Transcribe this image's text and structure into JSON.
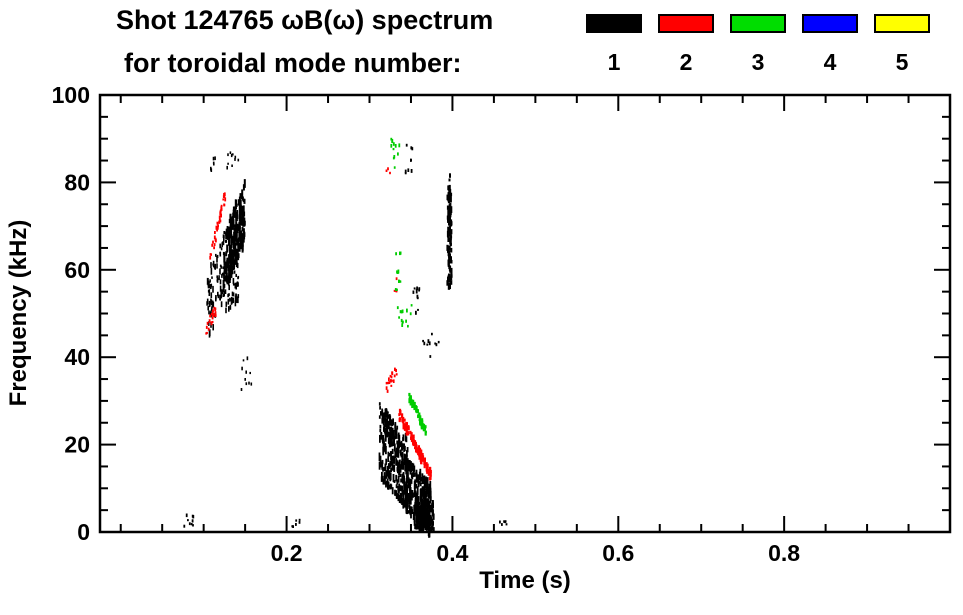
{
  "title": {
    "line1": "Shot 124765 ωB(ω) spectrum",
    "line2": "for toroidal mode number:"
  },
  "legend": {
    "modes": [
      {
        "label": "1",
        "color": "#000000"
      },
      {
        "label": "2",
        "color": "#ff0000"
      },
      {
        "label": "3",
        "color": "#00dd00"
      },
      {
        "label": "4",
        "color": "#0000ff"
      },
      {
        "label": "5",
        "color": "#ffff00"
      }
    ]
  },
  "axes": {
    "xlabel": "Time (s)",
    "ylabel": "Frequency (kHz)",
    "x_tick_labels": [
      "0.2",
      "0.4",
      "0.6",
      "0.8"
    ],
    "y_tick_labels": [
      "0",
      "20",
      "40",
      "60",
      "80",
      "100"
    ]
  },
  "chart_data": {
    "type": "scatter",
    "title": "Shot 124765 ωB(ω) spectrum for toroidal mode number: 1 2 3 4 5",
    "xlabel": "Time (s)",
    "ylabel": "Frequency (kHz)",
    "xlim": [
      -0.025,
      1.0
    ],
    "ylim": [
      0,
      100
    ],
    "xticks": [
      0.2,
      0.4,
      0.6,
      0.8
    ],
    "xminor": 0.05,
    "yticks": [
      0,
      20,
      40,
      60,
      80,
      100
    ],
    "yminor": 5,
    "grid": false,
    "legend_position": "top-right",
    "series": [
      {
        "mode": 1,
        "name": "n=1",
        "color": "#000000",
        "clusters": [
          {
            "kind": "trend",
            "t": [
              0.104,
              0.126
            ],
            "f": [
              52,
              60
            ],
            "spread": 16,
            "count": 90,
            "w": 1.6,
            "h": [
              2,
              7
            ]
          },
          {
            "kind": "trend",
            "t": [
              0.124,
              0.15
            ],
            "f": [
              62,
              73
            ],
            "spread": 14,
            "count": 220,
            "w": 2,
            "h": [
              3,
              10
            ]
          },
          {
            "kind": "trend",
            "t": [
              0.126,
              0.142
            ],
            "f": [
              55,
              58
            ],
            "spread": 10,
            "count": 60,
            "w": 1.6,
            "h": [
              2,
              6
            ]
          },
          {
            "kind": "uniform",
            "t": [
              0.128,
              0.142
            ],
            "f": [
              83,
              87
            ],
            "count": 10,
            "w": 1.6,
            "h": [
              2,
              4
            ]
          },
          {
            "kind": "uniform",
            "t": [
              0.108,
              0.114
            ],
            "f": [
              82,
              86
            ],
            "count": 6,
            "w": 1.6,
            "h": [
              2,
              4
            ]
          },
          {
            "kind": "uniform",
            "t": [
              0.144,
              0.158
            ],
            "f": [
              32,
              40
            ],
            "count": 10,
            "w": 1.6,
            "h": [
              2,
              4
            ]
          },
          {
            "kind": "uniform",
            "t": [
              0.076,
              0.09
            ],
            "f": [
              1,
              4
            ],
            "count": 9,
            "w": 1.8,
            "h": [
              2,
              4
            ]
          },
          {
            "kind": "uniform",
            "t": [
              0.206,
              0.216
            ],
            "f": [
              1,
              3
            ],
            "count": 6,
            "w": 1.8,
            "h": [
              2,
              3
            ]
          },
          {
            "kind": "uniform",
            "t": [
              0.456,
              0.466
            ],
            "f": [
              1,
              3
            ],
            "count": 6,
            "w": 1.8,
            "h": [
              2,
              3
            ]
          },
          {
            "kind": "uniform",
            "t": [
              0.342,
              0.352
            ],
            "f": [
              82,
              89
            ],
            "count": 9,
            "w": 1.8,
            "h": [
              2,
              5
            ]
          },
          {
            "kind": "uniform",
            "t": [
              0.352,
              0.362
            ],
            "f": [
              50,
              56
            ],
            "count": 10,
            "w": 1.8,
            "h": [
              2,
              5
            ]
          },
          {
            "kind": "uniform",
            "t": [
              0.364,
              0.388
            ],
            "f": [
              40,
              46
            ],
            "count": 10,
            "w": 1.8,
            "h": [
              2,
              4
            ]
          },
          {
            "kind": "uniform",
            "t": [
              0.394,
              0.399
            ],
            "f": [
              56,
              79
            ],
            "count": 90,
            "w": 2.2,
            "h": [
              3,
              7
            ]
          },
          {
            "kind": "uniform",
            "t": [
              0.394,
              0.398
            ],
            "f": [
              80,
              82
            ],
            "count": 3,
            "w": 2,
            "h": [
              2,
              4
            ]
          },
          {
            "kind": "trend",
            "t": [
              0.312,
              0.346
            ],
            "f": [
              21,
              13
            ],
            "spread": 17,
            "count": 240,
            "w": 1.8,
            "h": [
              3,
              9
            ]
          },
          {
            "kind": "trend",
            "t": [
              0.34,
              0.374
            ],
            "f": [
              12,
              5
            ],
            "spread": 12,
            "count": 280,
            "w": 1.8,
            "h": [
              3,
              9
            ]
          },
          {
            "kind": "uniform",
            "t": [
              0.354,
              0.378
            ],
            "f": [
              0.5,
              7
            ],
            "count": 160,
            "w": 2,
            "h": [
              3,
              7
            ]
          },
          {
            "kind": "trend",
            "t": [
              0.315,
              0.33
            ],
            "f": [
              27,
              22
            ],
            "spread": 6,
            "count": 40,
            "w": 1.6,
            "h": [
              2,
              6
            ]
          }
        ]
      },
      {
        "mode": 2,
        "name": "n=2",
        "color": "#ff0000",
        "clusters": [
          {
            "kind": "trend",
            "t": [
              0.107,
              0.126
            ],
            "f": [
              62,
              77
            ],
            "spread": 3,
            "count": 40,
            "w": 1.8,
            "h": [
              2,
              4
            ]
          },
          {
            "kind": "trend",
            "t": [
              0.103,
              0.115
            ],
            "f": [
              46,
              51
            ],
            "spread": 3,
            "count": 22,
            "w": 1.8,
            "h": [
              2,
              4
            ]
          },
          {
            "kind": "trend",
            "t": [
              0.32,
              0.333
            ],
            "f": [
              33,
              37
            ],
            "spread": 3,
            "count": 18,
            "w": 1.8,
            "h": [
              2,
              4
            ]
          },
          {
            "kind": "trend",
            "t": [
              0.336,
              0.374
            ],
            "f": [
              27,
              13
            ],
            "spread": 2.5,
            "count": 110,
            "w": 2.2,
            "h": [
              2.5,
              5
            ]
          },
          {
            "kind": "uniform",
            "t": [
              0.33,
              0.334
            ],
            "f": [
              55,
              58
            ],
            "count": 4,
            "w": 1.8,
            "h": [
              2,
              3
            ]
          },
          {
            "kind": "uniform",
            "t": [
              0.32,
              0.326
            ],
            "f": [
              82,
              85
            ],
            "count": 3,
            "w": 1.8,
            "h": [
              2,
              3
            ]
          }
        ]
      },
      {
        "mode": 3,
        "name": "n=3",
        "color": "#00cc00",
        "clusters": [
          {
            "kind": "uniform",
            "t": [
              0.324,
              0.336
            ],
            "f": [
              82,
              90
            ],
            "count": 12,
            "w": 1.8,
            "h": [
              2,
              4
            ]
          },
          {
            "kind": "uniform",
            "t": [
              0.328,
              0.338
            ],
            "f": [
              55,
              64
            ],
            "count": 11,
            "w": 1.8,
            "h": [
              2,
              4
            ]
          },
          {
            "kind": "uniform",
            "t": [
              0.334,
              0.352
            ],
            "f": [
              47,
              53
            ],
            "count": 13,
            "w": 1.8,
            "h": [
              2,
              4
            ]
          },
          {
            "kind": "trend",
            "t": [
              0.348,
              0.368
            ],
            "f": [
              31,
              23
            ],
            "spread": 2,
            "count": 60,
            "w": 2.2,
            "h": [
              2.5,
              5
            ]
          }
        ]
      },
      {
        "mode": 4,
        "name": "n=4",
        "color": "#0000ff",
        "clusters": []
      },
      {
        "mode": 5,
        "name": "n=5",
        "color": "#ffff00",
        "clusters": []
      }
    ]
  }
}
